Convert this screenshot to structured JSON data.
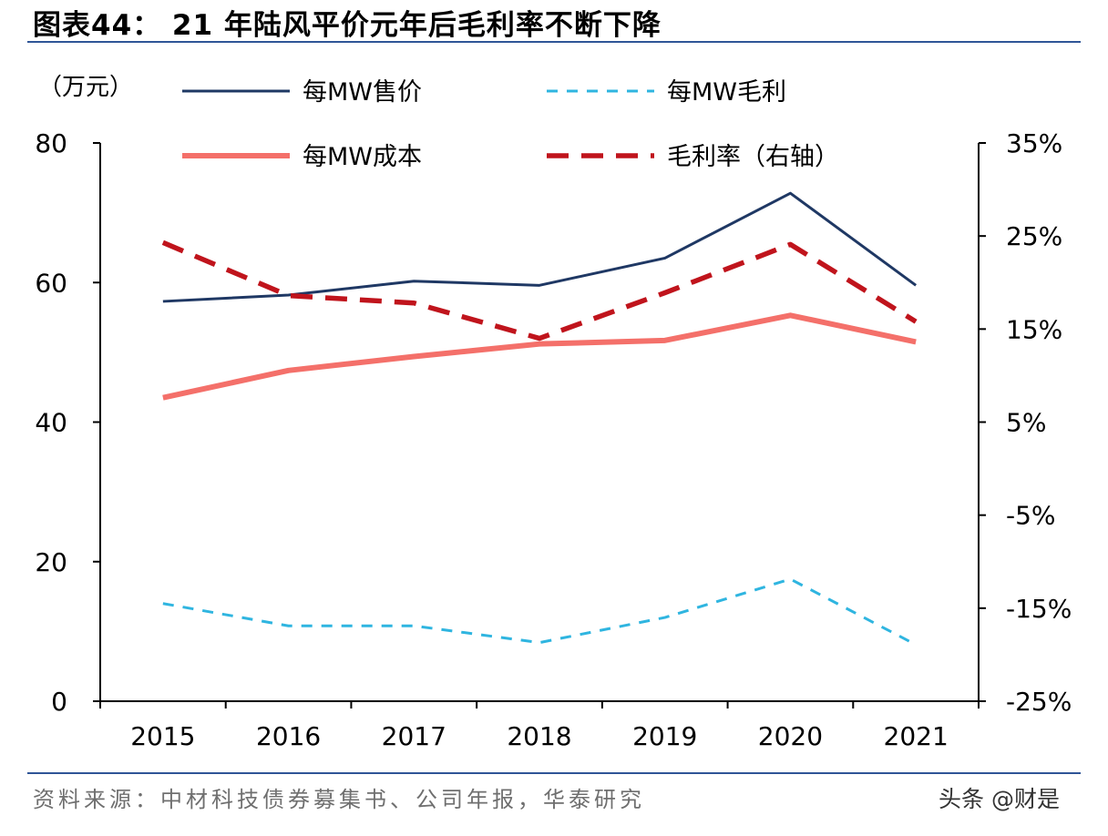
{
  "header": {
    "title": "图表44：  21 年陆风平价元年后毛利率不断下降"
  },
  "footer": {
    "source": "资料来源：中材科技债券募集书、公司年报，华泰研究",
    "watermark": "头条 @财是"
  },
  "chart_data": {
    "type": "line",
    "y_left_unit": "（万元）",
    "x": [
      "2015",
      "2016",
      "2017",
      "2018",
      "2019",
      "2020",
      "2021"
    ],
    "y_left": {
      "range": [
        0,
        80
      ],
      "ticks": [
        0,
        20,
        40,
        60,
        80
      ]
    },
    "y_right": {
      "range": [
        -25,
        35
      ],
      "ticks": [
        "-25%",
        "-15%",
        "-5%",
        "5%",
        "15%",
        "25%",
        "35%"
      ],
      "tick_values": [
        -25,
        -15,
        -5,
        5,
        15,
        25,
        35
      ]
    },
    "legend_placement": "top",
    "series": [
      {
        "name": "每MW售价",
        "axis": "left",
        "color": "#1f3864",
        "style": "solid",
        "values": [
          57.3,
          58.2,
          60.2,
          59.6,
          63.5,
          72.8,
          59.6
        ]
      },
      {
        "name": "每MW毛利",
        "axis": "left",
        "color": "#2fb5e0",
        "style": "dashed-thin",
        "values": [
          14.0,
          10.8,
          10.8,
          8.4,
          12.0,
          17.5,
          8.1
        ]
      },
      {
        "name": "每MW成本",
        "axis": "left",
        "color": "#f4706a",
        "style": "solid-thick",
        "values": [
          43.5,
          47.4,
          49.4,
          51.2,
          51.7,
          55.3,
          51.5
        ]
      },
      {
        "name": "毛利率（右轴）",
        "axis": "right",
        "color": "#c0141c",
        "style": "dashed-thick",
        "values": [
          24.3,
          18.6,
          17.8,
          14.0,
          18.9,
          24.1,
          15.8
        ]
      }
    ]
  }
}
